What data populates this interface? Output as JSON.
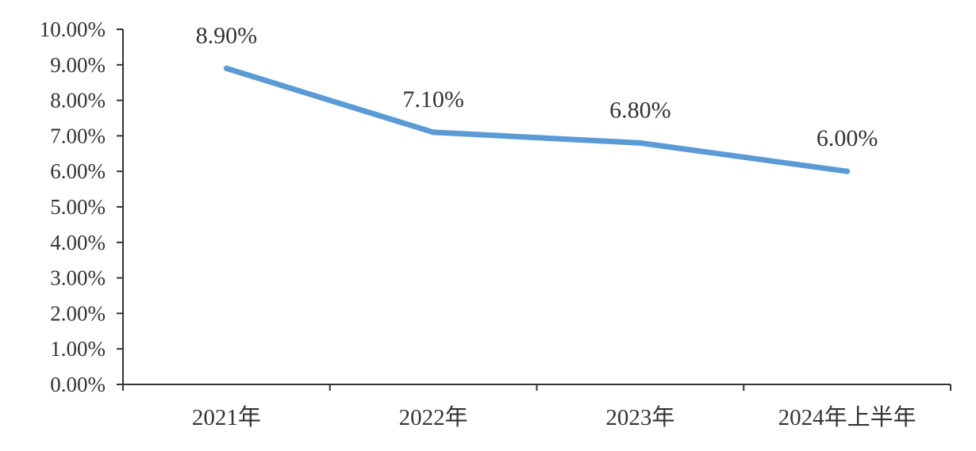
{
  "chart_data": {
    "type": "line",
    "title": "",
    "xlabel": "",
    "ylabel": "",
    "categories": [
      "2021年",
      "2022年",
      "2023年",
      "2024年上半年"
    ],
    "series": [
      {
        "values": [
          8.9,
          7.1,
          6.8,
          6.0
        ],
        "labels": [
          "8.90%",
          "7.10%",
          "6.80%",
          "6.00%"
        ]
      }
    ],
    "ylim": [
      0,
      10
    ],
    "yticks": [
      0,
      1,
      2,
      3,
      4,
      5,
      6,
      7,
      8,
      9,
      10
    ],
    "ytick_labels": [
      "0.00%",
      "1.00%",
      "2.00%",
      "3.00%",
      "4.00%",
      "5.00%",
      "6.00%",
      "7.00%",
      "8.00%",
      "9.00%",
      "10.00%"
    ],
    "grid": false,
    "legend": "none",
    "line_color": "#5B9BD5",
    "axis_color": "#333333"
  }
}
